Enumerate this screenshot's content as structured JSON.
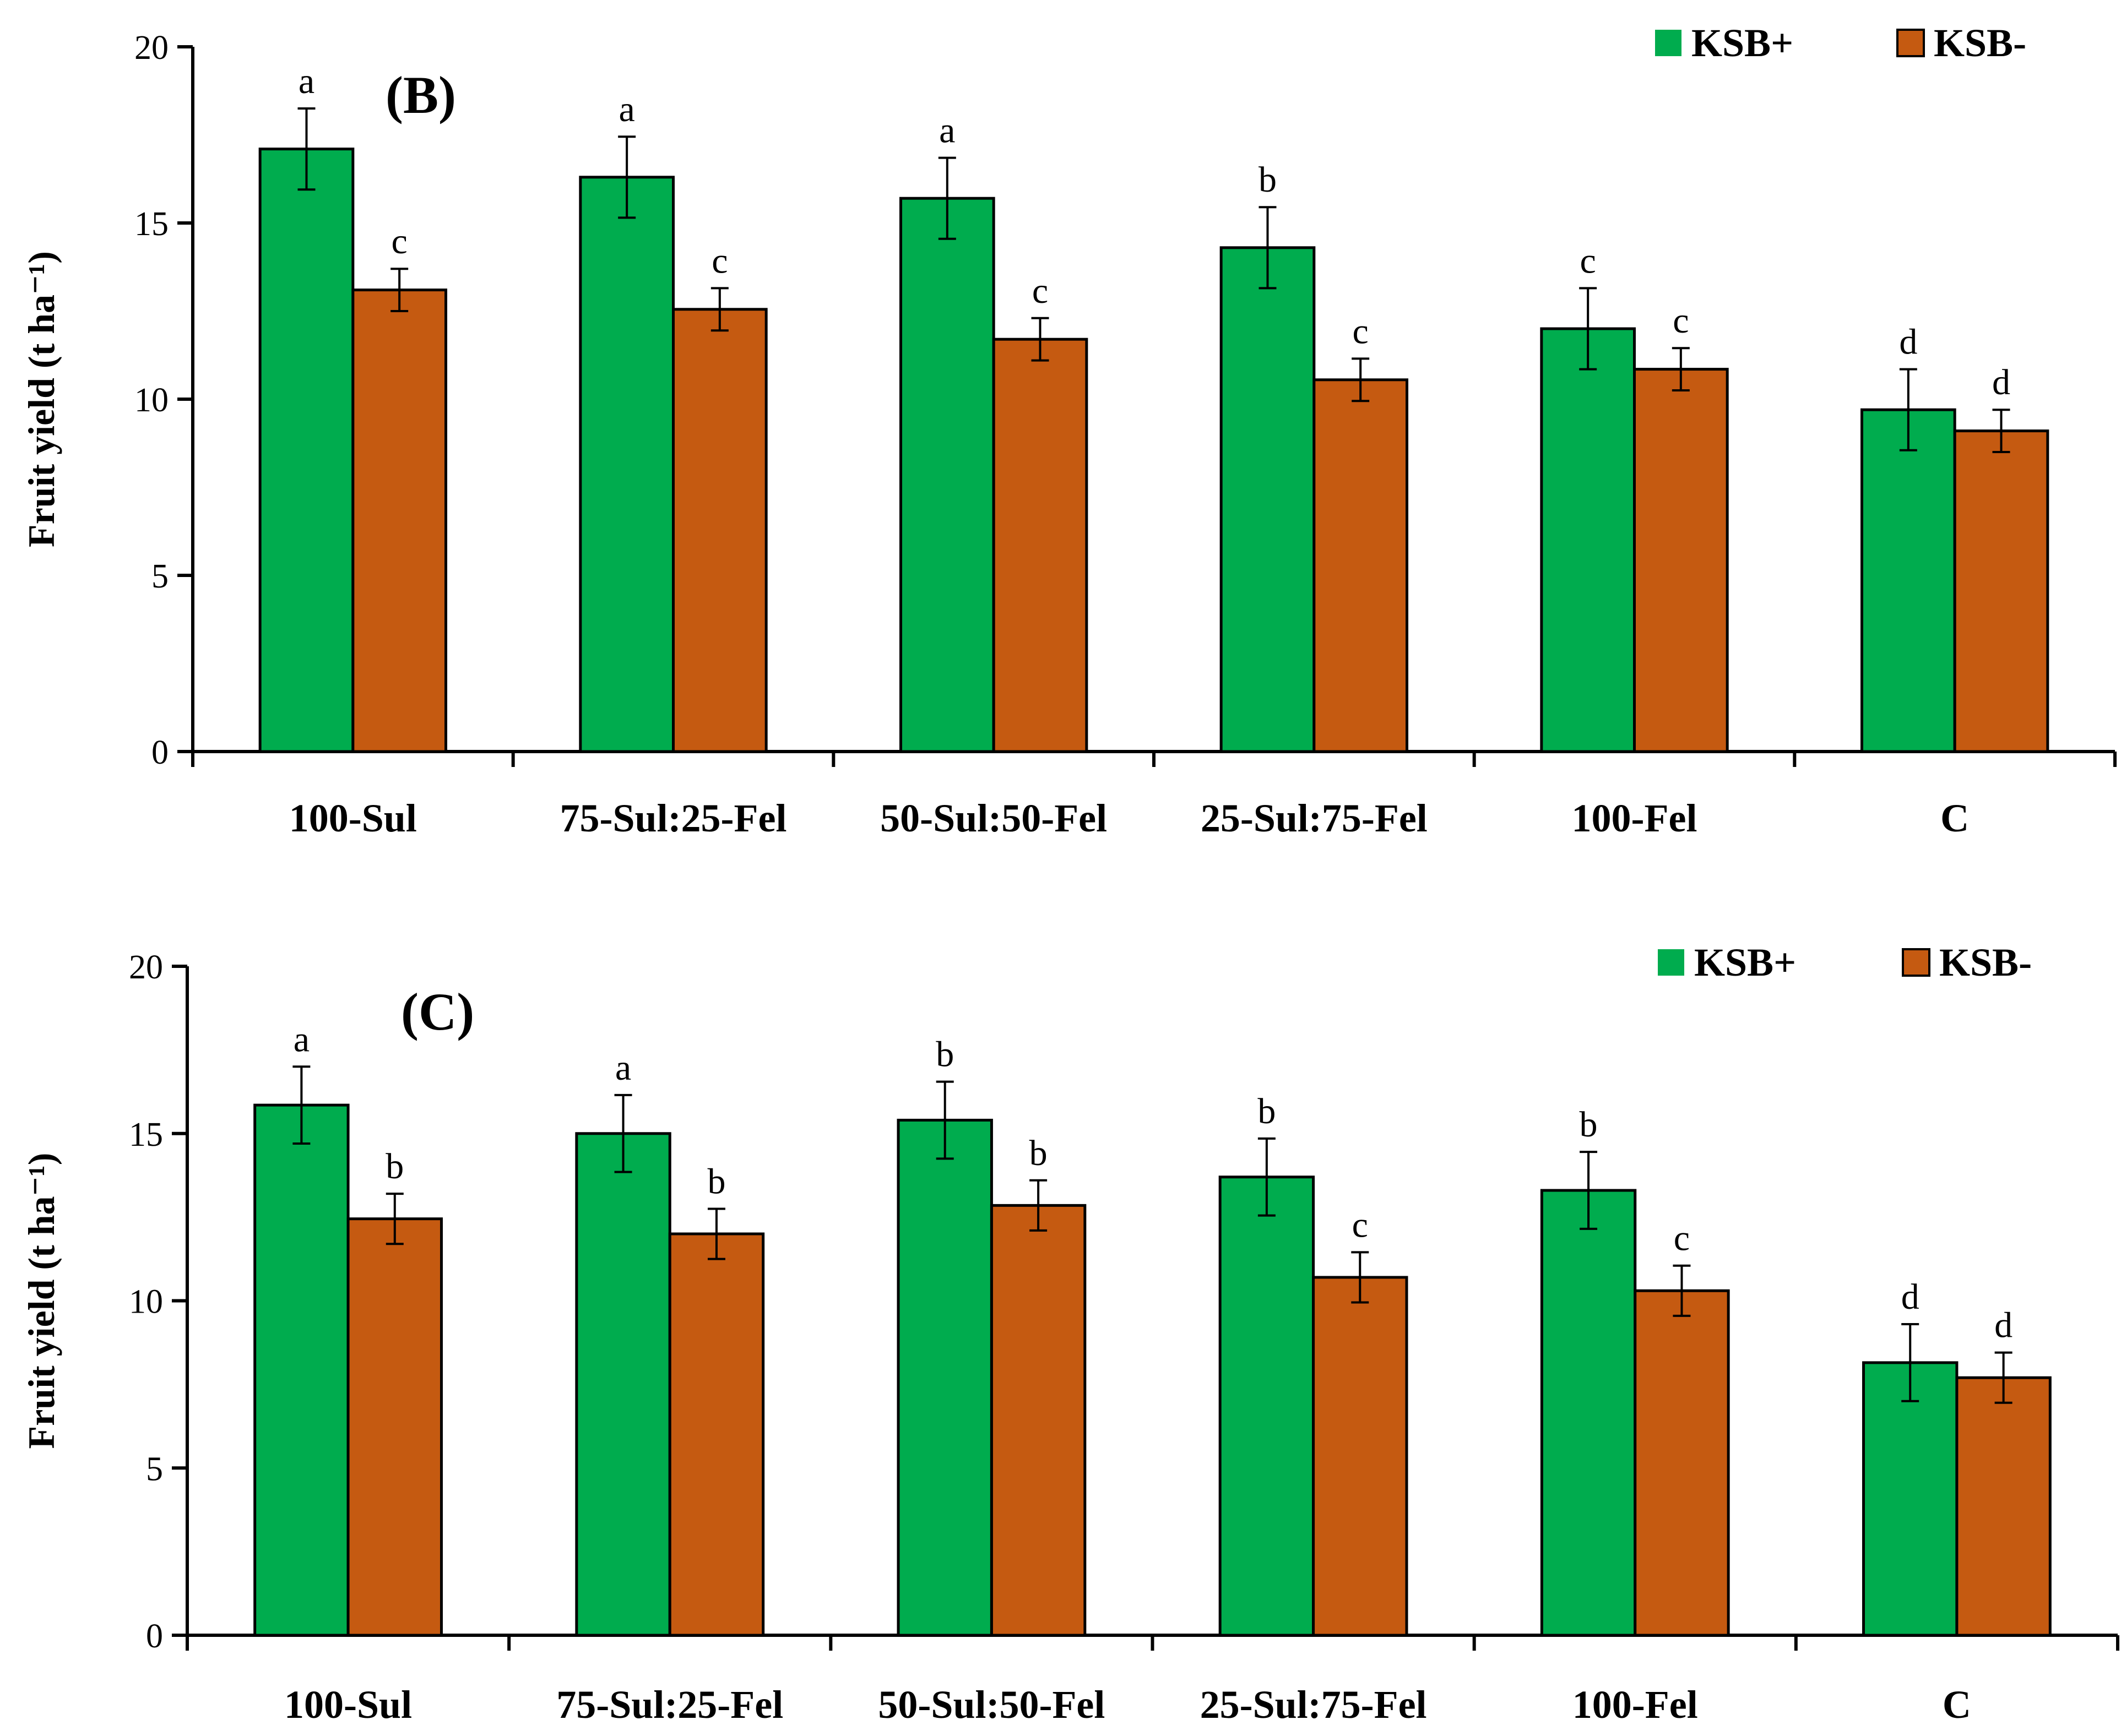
{
  "colors": {
    "ksb_plus": "#00ac4e",
    "ksb_minus": "#c55a11",
    "axis": "#000000"
  },
  "chart_data": [
    {
      "type": "bar",
      "panel_label": "(B)",
      "ylabel": "Fruit yield (t ha⁻¹)",
      "ylim": [
        0,
        20
      ],
      "yticks": [
        0,
        5,
        10,
        15,
        20
      ],
      "categories": [
        "100-Sul",
        "75-Sul:25-Fel",
        "50-Sul:50-Fel",
        "25-Sul:75-Fel",
        "100-Fel",
        "C"
      ],
      "legend_position": "top-right",
      "series": [
        {
          "name": "KSB+",
          "values": [
            17.1,
            16.3,
            15.7,
            14.3,
            12.0,
            9.7
          ],
          "errors": [
            1.15,
            1.15,
            1.15,
            1.15,
            1.15,
            1.15
          ],
          "labels": [
            "a",
            "a",
            "a",
            "b",
            "c",
            "d"
          ]
        },
        {
          "name": "KSB-",
          "values": [
            13.1,
            12.55,
            11.7,
            10.55,
            10.85,
            9.1
          ],
          "errors": [
            0.6,
            0.6,
            0.6,
            0.6,
            0.6,
            0.6
          ],
          "labels": [
            "c",
            "c",
            "c",
            "c",
            "c",
            "d"
          ]
        }
      ]
    },
    {
      "type": "bar",
      "panel_label": "(C)",
      "ylabel": "Fruit yield (t ha⁻¹)",
      "ylim": [
        0,
        20
      ],
      "yticks": [
        0,
        5,
        10,
        15,
        20
      ],
      "categories": [
        "100-Sul",
        "75-Sul:25-Fel",
        "50-Sul:50-Fel",
        "25-Sul:75-Fel",
        "100-Fel",
        "C"
      ],
      "legend_position": "top-right",
      "series": [
        {
          "name": "KSB+",
          "values": [
            15.85,
            15.0,
            15.4,
            13.7,
            13.3,
            8.15
          ],
          "errors": [
            1.15,
            1.15,
            1.15,
            1.15,
            1.15,
            1.15
          ],
          "labels": [
            "a",
            "a",
            "b",
            "b",
            "b",
            "d"
          ]
        },
        {
          "name": "KSB-",
          "values": [
            12.45,
            12.0,
            12.85,
            10.7,
            10.3,
            7.7
          ],
          "errors": [
            0.75,
            0.75,
            0.75,
            0.75,
            0.75,
            0.75
          ],
          "labels": [
            "b",
            "b",
            "b",
            "c",
            "c",
            "d"
          ]
        }
      ]
    }
  ]
}
